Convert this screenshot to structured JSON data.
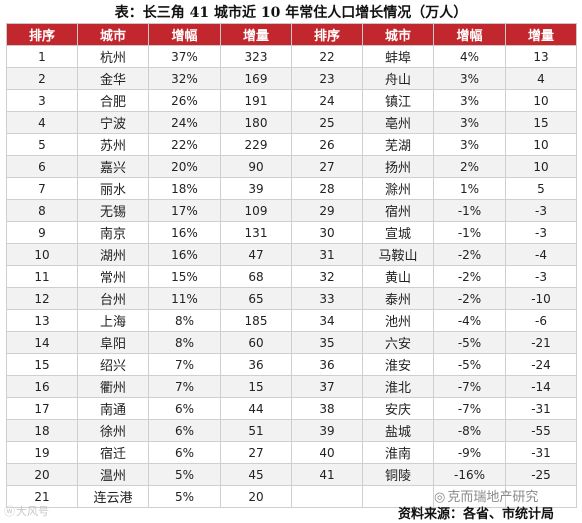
{
  "title": "表：长三角 41 城市近 10 年常住人口增长情况（万人）",
  "headers": [
    "排序",
    "城市",
    "增幅",
    "增量",
    "排序",
    "城市",
    "增幅",
    "增量"
  ],
  "rows": [
    {
      "l": [
        "1",
        "杭州",
        "37%",
        "323"
      ],
      "r": [
        "22",
        "蚌埠",
        "4%",
        "13"
      ]
    },
    {
      "l": [
        "2",
        "金华",
        "32%",
        "169"
      ],
      "r": [
        "23",
        "舟山",
        "3%",
        "4"
      ]
    },
    {
      "l": [
        "3",
        "合肥",
        "26%",
        "191"
      ],
      "r": [
        "24",
        "镇江",
        "3%",
        "10"
      ]
    },
    {
      "l": [
        "4",
        "宁波",
        "24%",
        "180"
      ],
      "r": [
        "25",
        "亳州",
        "3%",
        "15"
      ]
    },
    {
      "l": [
        "5",
        "苏州",
        "22%",
        "229"
      ],
      "r": [
        "26",
        "芜湖",
        "3%",
        "10"
      ]
    },
    {
      "l": [
        "6",
        "嘉兴",
        "20%",
        "90"
      ],
      "r": [
        "27",
        "扬州",
        "2%",
        "10"
      ]
    },
    {
      "l": [
        "7",
        "丽水",
        "18%",
        "39"
      ],
      "r": [
        "28",
        "滁州",
        "1%",
        "5"
      ]
    },
    {
      "l": [
        "8",
        "无锡",
        "17%",
        "109"
      ],
      "r": [
        "29",
        "宿州",
        "-1%",
        "-3"
      ]
    },
    {
      "l": [
        "9",
        "南京",
        "16%",
        "131"
      ],
      "r": [
        "30",
        "宣城",
        "-1%",
        "-3"
      ]
    },
    {
      "l": [
        "10",
        "湖州",
        "16%",
        "47"
      ],
      "r": [
        "31",
        "马鞍山",
        "-2%",
        "-4"
      ]
    },
    {
      "l": [
        "11",
        "常州",
        "15%",
        "68"
      ],
      "r": [
        "32",
        "黄山",
        "-2%",
        "-3"
      ]
    },
    {
      "l": [
        "12",
        "台州",
        "11%",
        "65"
      ],
      "r": [
        "33",
        "泰州",
        "-2%",
        "-10"
      ]
    },
    {
      "l": [
        "13",
        "上海",
        "8%",
        "185"
      ],
      "r": [
        "34",
        "池州",
        "-4%",
        "-6"
      ]
    },
    {
      "l": [
        "14",
        "阜阳",
        "8%",
        "60"
      ],
      "r": [
        "35",
        "六安",
        "-5%",
        "-21"
      ]
    },
    {
      "l": [
        "15",
        "绍兴",
        "7%",
        "36"
      ],
      "r": [
        "36",
        "淮安",
        "-5%",
        "-24"
      ]
    },
    {
      "l": [
        "16",
        "衢州",
        "7%",
        "15"
      ],
      "r": [
        "37",
        "淮北",
        "-7%",
        "-14"
      ]
    },
    {
      "l": [
        "17",
        "南通",
        "6%",
        "44"
      ],
      "r": [
        "38",
        "安庆",
        "-7%",
        "-31"
      ]
    },
    {
      "l": [
        "18",
        "徐州",
        "6%",
        "51"
      ],
      "r": [
        "39",
        "盐城",
        "-8%",
        "-55"
      ]
    },
    {
      "l": [
        "19",
        "宿迁",
        "6%",
        "27"
      ],
      "r": [
        "40",
        "淮南",
        "-9%",
        "-31"
      ]
    },
    {
      "l": [
        "20",
        "温州",
        "5%",
        "45"
      ],
      "r": [
        "41",
        "铜陵",
        "-16%",
        "-25"
      ]
    },
    {
      "l": [
        "21",
        "连云港",
        "5%",
        "20"
      ],
      "r": [
        "",
        "",
        "",
        ""
      ]
    }
  ],
  "source": "资料来源：各省、市统计局",
  "watermark_text": "克而瑞地产研究",
  "footer_logo_text": "大风号",
  "footer_logo_icon": "weibo-logo-icon",
  "watermark_icon": "wechat-logo-icon",
  "colors": {
    "header_bg": "#c1272d",
    "header_text": "#ffffff",
    "alt_row": "#f2f2f2"
  }
}
